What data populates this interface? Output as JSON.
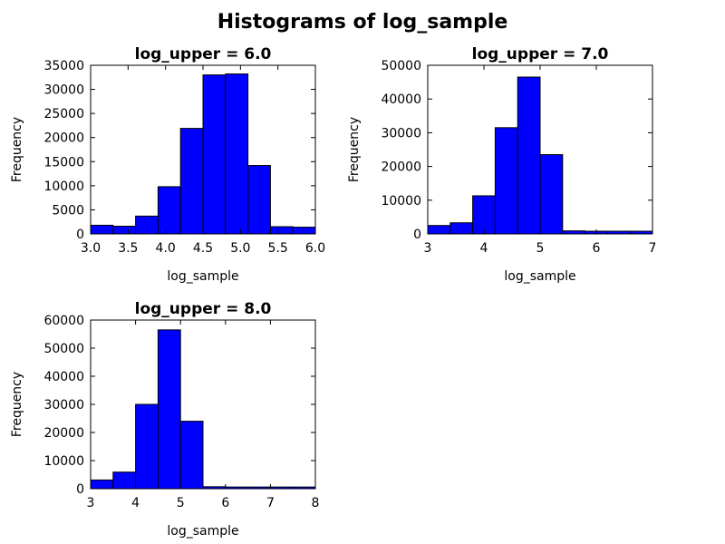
{
  "figure": {
    "title": "Histograms of log_sample"
  },
  "chart_data": [
    {
      "type": "bar",
      "title": "log_upper = 6.0",
      "xlabel": "log_sample",
      "ylabel": "Frequency",
      "xlim": [
        3.0,
        6.0
      ],
      "ylim": [
        0,
        35000
      ],
      "xticks": [
        "3.0",
        "3.5",
        "4.0",
        "4.5",
        "5.0",
        "5.5",
        "6.0"
      ],
      "xtick_values": [
        3.0,
        3.5,
        4.0,
        4.5,
        5.0,
        5.5,
        6.0
      ],
      "yticks": [
        "0",
        "5000",
        "10000",
        "15000",
        "20000",
        "25000",
        "30000",
        "35000"
      ],
      "ytick_values": [
        0,
        5000,
        10000,
        15000,
        20000,
        25000,
        30000,
        35000
      ],
      "bin_edges": [
        3.0,
        3.3,
        3.6,
        3.9,
        4.2,
        4.5,
        4.8,
        5.1,
        5.4,
        5.7,
        6.0
      ],
      "values": [
        1800,
        1600,
        3700,
        9800,
        21900,
        33000,
        33200,
        14200,
        1500,
        1400
      ],
      "color": "#0000ff"
    },
    {
      "type": "bar",
      "title": "log_upper = 7.0",
      "xlabel": "log_sample",
      "ylabel": "Frequency",
      "xlim": [
        3,
        7
      ],
      "ylim": [
        0,
        50000
      ],
      "xticks": [
        "3",
        "4",
        "5",
        "6",
        "7"
      ],
      "xtick_values": [
        3,
        4,
        5,
        6,
        7
      ],
      "yticks": [
        "0",
        "10000",
        "20000",
        "30000",
        "40000",
        "50000"
      ],
      "ytick_values": [
        0,
        10000,
        20000,
        30000,
        40000,
        50000
      ],
      "bin_edges": [
        3.0,
        3.4,
        3.8,
        4.2,
        4.6,
        5.0,
        5.4,
        5.8,
        6.2,
        6.6,
        7.0
      ],
      "values": [
        2500,
        3300,
        11300,
        31500,
        46500,
        23500,
        900,
        800,
        800,
        800
      ],
      "color": "#0000ff"
    },
    {
      "type": "bar",
      "title": "log_upper = 8.0",
      "xlabel": "log_sample",
      "ylabel": "Frequency",
      "xlim": [
        3,
        8
      ],
      "ylim": [
        0,
        60000
      ],
      "xticks": [
        "3",
        "4",
        "5",
        "6",
        "7",
        "8"
      ],
      "xtick_values": [
        3,
        4,
        5,
        6,
        7,
        8
      ],
      "yticks": [
        "0",
        "10000",
        "20000",
        "30000",
        "40000",
        "50000",
        "60000"
      ],
      "ytick_values": [
        0,
        10000,
        20000,
        30000,
        40000,
        50000,
        60000
      ],
      "bin_edges": [
        3.0,
        3.5,
        4.0,
        4.5,
        5.0,
        5.5,
        6.0,
        6.5,
        7.0,
        7.5,
        8.0
      ],
      "values": [
        3100,
        5900,
        30000,
        56500,
        24000,
        700,
        600,
        600,
        600,
        600
      ],
      "color": "#0000ff"
    }
  ]
}
